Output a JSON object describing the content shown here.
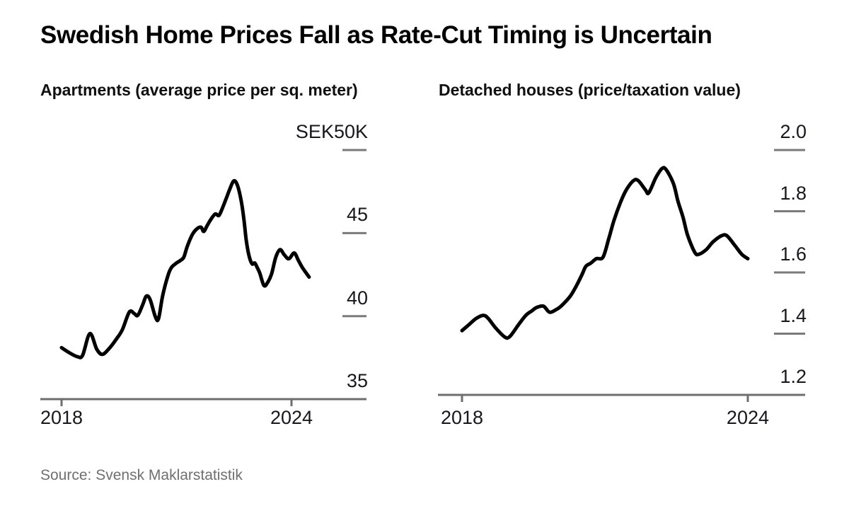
{
  "header": {
    "title": "Swedish Home Prices Fall as Rate-Cut Timing is Uncertain"
  },
  "source": {
    "text": "Source: Svensk Maklarstatistik"
  },
  "colors": {
    "background": "#ffffff",
    "series_line": "#000000",
    "axis_line": "#6e6e6e",
    "tick_dash": "#7a7a7a",
    "tick_label": "#17171c",
    "title_text": "#000000",
    "source_text": "#6f6f6f"
  },
  "chart_data": [
    {
      "type": "line",
      "title": "Apartments (average price per sq. meter)",
      "xlabel": "",
      "ylabel": "",
      "xlim": [
        2018,
        2024.5
      ],
      "ylim": [
        35,
        50
      ],
      "grid": false,
      "legend_position": "none",
      "x_ticks": [
        {
          "value": 2018,
          "label": "2018"
        },
        {
          "value": 2024,
          "label": "2024"
        }
      ],
      "y_ticks": [
        {
          "value": 50,
          "label": "SEK50K"
        },
        {
          "value": 45,
          "label": "45"
        },
        {
          "value": 40,
          "label": "40"
        },
        {
          "value": 35,
          "label": "35"
        }
      ],
      "series": [
        {
          "name": "Apartments (average price per sq. meter)",
          "points": [
            [
              2018.0,
              38.1
            ],
            [
              2018.2,
              37.8
            ],
            [
              2018.42,
              37.55
            ],
            [
              2018.55,
              37.65
            ],
            [
              2018.74,
              38.95
            ],
            [
              2018.92,
              38.0
            ],
            [
              2019.07,
              37.7
            ],
            [
              2019.26,
              38.1
            ],
            [
              2019.44,
              38.65
            ],
            [
              2019.59,
              39.2
            ],
            [
              2019.77,
              40.25
            ],
            [
              2019.9,
              40.15
            ],
            [
              2019.99,
              40.05
            ],
            [
              2020.12,
              40.7
            ],
            [
              2020.21,
              41.2
            ],
            [
              2020.31,
              41.0
            ],
            [
              2020.45,
              39.95
            ],
            [
              2020.53,
              39.85
            ],
            [
              2020.64,
              41.25
            ],
            [
              2020.77,
              42.4
            ],
            [
              2020.86,
              42.9
            ],
            [
              2020.97,
              43.15
            ],
            [
              2021.1,
              43.35
            ],
            [
              2021.19,
              43.55
            ],
            [
              2021.28,
              44.2
            ],
            [
              2021.41,
              44.9
            ],
            [
              2021.53,
              45.25
            ],
            [
              2021.64,
              45.35
            ],
            [
              2021.71,
              45.1
            ],
            [
              2021.8,
              45.45
            ],
            [
              2021.89,
              45.8
            ],
            [
              2022.01,
              46.15
            ],
            [
              2022.1,
              46.05
            ],
            [
              2022.17,
              46.35
            ],
            [
              2022.3,
              47.1
            ],
            [
              2022.39,
              47.65
            ],
            [
              2022.5,
              48.15
            ],
            [
              2022.6,
              47.8
            ],
            [
              2022.69,
              46.9
            ],
            [
              2022.76,
              45.8
            ],
            [
              2022.82,
              44.55
            ],
            [
              2022.89,
              43.65
            ],
            [
              2022.97,
              43.15
            ],
            [
              2023.04,
              43.2
            ],
            [
              2023.1,
              42.95
            ],
            [
              2023.17,
              42.6
            ],
            [
              2023.28,
              41.85
            ],
            [
              2023.37,
              42.0
            ],
            [
              2023.48,
              42.55
            ],
            [
              2023.59,
              43.55
            ],
            [
              2023.7,
              44.0
            ],
            [
              2023.81,
              43.7
            ],
            [
              2023.93,
              43.45
            ],
            [
              2024.07,
              43.8
            ],
            [
              2024.18,
              43.35
            ],
            [
              2024.29,
              42.9
            ],
            [
              2024.46,
              42.35
            ]
          ]
        }
      ]
    },
    {
      "type": "line",
      "title": "Detached houses (price/taxation value)",
      "xlabel": "",
      "ylabel": "",
      "xlim": [
        2018,
        2024
      ],
      "ylim": [
        1.2,
        2.0
      ],
      "grid": false,
      "legend_position": "none",
      "x_ticks": [
        {
          "value": 2018,
          "label": "2018"
        },
        {
          "value": 2024,
          "label": "2024"
        }
      ],
      "y_ticks": [
        {
          "value": 2.0,
          "label": "2.0"
        },
        {
          "value": 1.8,
          "label": "1.8"
        },
        {
          "value": 1.6,
          "label": "1.6"
        },
        {
          "value": 1.4,
          "label": "1.4"
        },
        {
          "value": 1.2,
          "label": "1.2"
        }
      ],
      "series": [
        {
          "name": "Detached houses (price/taxation value)",
          "points": [
            [
              2018.0,
              1.41
            ],
            [
              2018.15,
              1.43
            ],
            [
              2018.3,
              1.45
            ],
            [
              2018.45,
              1.46
            ],
            [
              2018.55,
              1.45
            ],
            [
              2018.7,
              1.42
            ],
            [
              2018.89,
              1.39
            ],
            [
              2019.0,
              1.39
            ],
            [
              2019.19,
              1.43
            ],
            [
              2019.34,
              1.46
            ],
            [
              2019.47,
              1.475
            ],
            [
              2019.56,
              1.485
            ],
            [
              2019.71,
              1.49
            ],
            [
              2019.84,
              1.47
            ],
            [
              2019.99,
              1.48
            ],
            [
              2020.08,
              1.49
            ],
            [
              2020.26,
              1.52
            ],
            [
              2020.38,
              1.55
            ],
            [
              2020.51,
              1.59
            ],
            [
              2020.6,
              1.62
            ],
            [
              2020.7,
              1.63
            ],
            [
              2020.82,
              1.645
            ],
            [
              2020.96,
              1.65
            ],
            [
              2021.08,
              1.71
            ],
            [
              2021.19,
              1.77
            ],
            [
              2021.33,
              1.83
            ],
            [
              2021.45,
              1.87
            ],
            [
              2021.6,
              1.9
            ],
            [
              2021.7,
              1.9
            ],
            [
              2021.85,
              1.87
            ],
            [
              2021.92,
              1.86
            ],
            [
              2022.07,
              1.91
            ],
            [
              2022.2,
              1.94
            ],
            [
              2022.29,
              1.935
            ],
            [
              2022.44,
              1.89
            ],
            [
              2022.53,
              1.835
            ],
            [
              2022.64,
              1.78
            ],
            [
              2022.74,
              1.72
            ],
            [
              2022.89,
              1.665
            ],
            [
              2022.98,
              1.66
            ],
            [
              2023.13,
              1.675
            ],
            [
              2023.27,
              1.7
            ],
            [
              2023.45,
              1.72
            ],
            [
              2023.56,
              1.72
            ],
            [
              2023.72,
              1.69
            ],
            [
              2023.87,
              1.66
            ],
            [
              2024.0,
              1.645
            ]
          ]
        }
      ]
    }
  ]
}
